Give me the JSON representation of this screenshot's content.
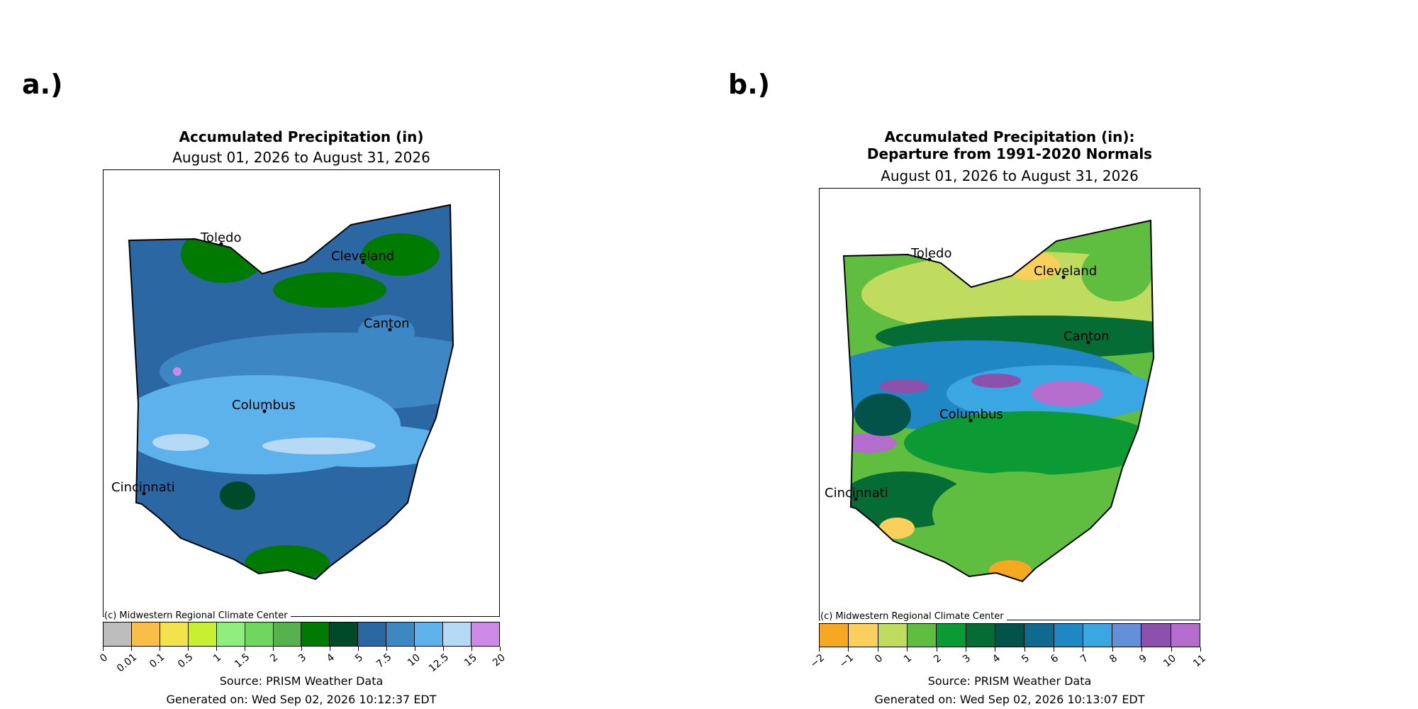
{
  "panels": [
    {
      "label": "a.)",
      "title": "Accumulated Precipitation (in)",
      "title2": "",
      "date_range": "August 01, 2026 to August 31, 2026",
      "copyright": "(c) Midwestern Regional Climate Center",
      "source": "Source: PRISM Weather Data",
      "generated": "Generated on: Wed Sep 02, 2026 10:12:37 EDT",
      "cities": [
        "Toledo",
        "Cleveland",
        "Canton",
        "Columbus",
        "Cincinnati"
      ],
      "colorbar": {
        "colors": [
          "#bdbdbd",
          "#f9be48",
          "#f2e34c",
          "#c8ef32",
          "#90ee7f",
          "#6fd65e",
          "#55b24d",
          "#007a00",
          "#004a2a",
          "#2b67a2",
          "#3d88c4",
          "#5db2ec",
          "#b6d9f5",
          "#cc8ae6"
        ],
        "ticks": [
          "0",
          "0.01",
          "0.1",
          "0.5",
          "1",
          "1.5",
          "2",
          "3",
          "4",
          "5",
          "7.5",
          "10",
          "12.5",
          "15",
          "20"
        ]
      }
    },
    {
      "label": "b.)",
      "title": "Accumulated Precipitation (in):",
      "title2": "Departure from 1991-2020 Normals",
      "date_range": "August 01, 2026 to August 31, 2026",
      "copyright": "(c) Midwestern Regional Climate Center",
      "source": "Source: PRISM Weather Data",
      "generated": "Generated on: Wed Sep 02, 2026 10:13:07 EDT",
      "cities": [
        "Toledo",
        "Cleveland",
        "Canton",
        "Columbus",
        "Cincinnati"
      ],
      "colorbar": {
        "colors": [
          "#f6a821",
          "#fbcf5c",
          "#bfdc5e",
          "#5fbe3f",
          "#0b9a34",
          "#066c35",
          "#04534b",
          "#0e6b8f",
          "#1f87c4",
          "#3aa6e2",
          "#6390d8",
          "#8b51ad",
          "#b46ccd"
        ],
        "ticks": [
          "−2",
          "−1",
          "0",
          "1",
          "2",
          "3",
          "4",
          "5",
          "6",
          "7",
          "8",
          "9",
          "10",
          "11"
        ]
      }
    }
  ]
}
